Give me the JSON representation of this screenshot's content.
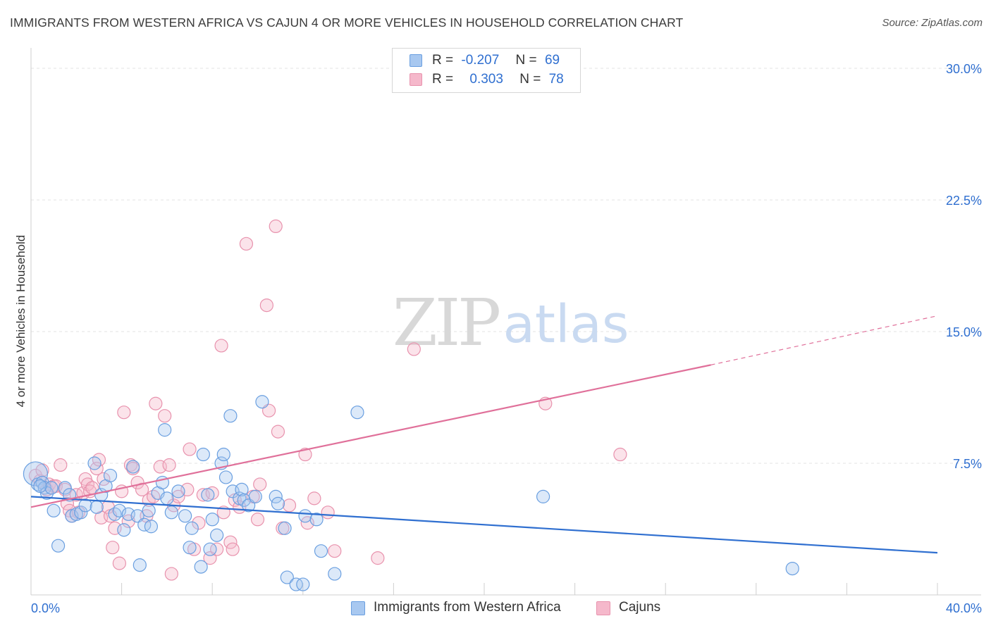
{
  "header": {
    "title": "IMMIGRANTS FROM WESTERN AFRICA VS CAJUN 4 OR MORE VEHICLES IN HOUSEHOLD CORRELATION CHART",
    "source": "Source: ZipAtlas.com"
  },
  "watermark": {
    "zip": "ZIP",
    "atlas": "atlas"
  },
  "legend": {
    "r_label": "R =",
    "n_label": "N =",
    "rows": [
      {
        "r": "-0.207",
        "n": "69"
      },
      {
        "r": "0.303",
        "n": "78"
      }
    ]
  },
  "colors": {
    "blue_fill": "#a8c8f0",
    "blue_stroke": "#6a9fe0",
    "blue_line": "#2f6fd0",
    "pink_fill": "#f5b8cb",
    "pink_stroke": "#e892ad",
    "pink_line": "#e0709a",
    "axis_text": "#2f6fd0",
    "grid": "#e3e3e3"
  },
  "chart_data": {
    "type": "scatter",
    "title": "IMMIGRANTS FROM WESTERN AFRICA VS CAJUN 4 OR MORE VEHICLES IN HOUSEHOLD CORRELATION CHART",
    "xlabel": "",
    "ylabel": "4 or more Vehicles in Household",
    "xlim": [
      0,
      40
    ],
    "ylim": [
      0,
      30
    ],
    "x_tick_labels": [
      {
        "value": 0,
        "label": "0.0%"
      },
      {
        "value": 40,
        "label": "40.0%"
      }
    ],
    "y_tick_labels": [
      {
        "value": 7.5,
        "label": "7.5%"
      },
      {
        "value": 15,
        "label": "15.0%"
      },
      {
        "value": 22.5,
        "label": "22.5%"
      },
      {
        "value": 30,
        "label": "30.0%"
      }
    ],
    "series": [
      {
        "name": "Immigrants from Western Africa",
        "color": "blue",
        "r": -0.207,
        "n": 69,
        "trend": {
          "x0": 0,
          "y0": 5.6,
          "x1": 40,
          "y1": 2.4
        },
        "points": [
          [
            0.2,
            6.9
          ],
          [
            0.3,
            6.3
          ],
          [
            0.5,
            6.4
          ],
          [
            0.6,
            6.1
          ],
          [
            0.7,
            5.8
          ],
          [
            0.9,
            6.1
          ],
          [
            1.0,
            4.8
          ],
          [
            1.2,
            2.8
          ],
          [
            1.5,
            6.1
          ],
          [
            1.7,
            5.7
          ],
          [
            1.8,
            4.5
          ],
          [
            2.0,
            4.6
          ],
          [
            2.2,
            4.7
          ],
          [
            2.4,
            5.1
          ],
          [
            2.8,
            7.5
          ],
          [
            2.9,
            5.0
          ],
          [
            3.1,
            5.7
          ],
          [
            3.3,
            6.2
          ],
          [
            3.5,
            6.8
          ],
          [
            3.7,
            4.6
          ],
          [
            3.9,
            4.8
          ],
          [
            4.1,
            3.7
          ],
          [
            4.3,
            4.6
          ],
          [
            4.5,
            7.3
          ],
          [
            4.7,
            4.5
          ],
          [
            4.8,
            1.7
          ],
          [
            5.0,
            4.0
          ],
          [
            5.2,
            4.8
          ],
          [
            5.3,
            3.9
          ],
          [
            5.6,
            5.8
          ],
          [
            5.8,
            6.4
          ],
          [
            5.9,
            9.4
          ],
          [
            6.0,
            5.5
          ],
          [
            6.2,
            4.7
          ],
          [
            6.5,
            5.9
          ],
          [
            6.8,
            4.5
          ],
          [
            7.0,
            2.7
          ],
          [
            7.1,
            3.8
          ],
          [
            7.5,
            1.6
          ],
          [
            7.6,
            8.0
          ],
          [
            7.8,
            5.7
          ],
          [
            7.9,
            2.6
          ],
          [
            8.0,
            4.3
          ],
          [
            8.2,
            3.4
          ],
          [
            8.4,
            7.5
          ],
          [
            8.5,
            8.0
          ],
          [
            8.6,
            6.7
          ],
          [
            8.8,
            10.2
          ],
          [
            8.9,
            5.9
          ],
          [
            9.2,
            5.5
          ],
          [
            9.3,
            6.0
          ],
          [
            9.4,
            5.4
          ],
          [
            9.6,
            5.1
          ],
          [
            9.9,
            5.6
          ],
          [
            10.2,
            11.0
          ],
          [
            10.8,
            5.6
          ],
          [
            10.9,
            5.2
          ],
          [
            11.2,
            3.8
          ],
          [
            11.3,
            1.0
          ],
          [
            11.7,
            0.6
          ],
          [
            12.0,
            0.6
          ],
          [
            12.1,
            4.5
          ],
          [
            12.6,
            4.3
          ],
          [
            12.8,
            2.5
          ],
          [
            13.4,
            1.2
          ],
          [
            14.4,
            10.4
          ],
          [
            22.6,
            5.6
          ],
          [
            33.6,
            1.5
          ],
          [
            0.4,
            6.2
          ]
        ]
      },
      {
        "name": "Cajuns",
        "color": "pink",
        "r": 0.303,
        "n": 78,
        "trend": {
          "x0": 0,
          "y0": 5.0,
          "x1": 30.0,
          "y1": 13.1
        },
        "trend_dashed_to": {
          "x": 40,
          "y": 15.9
        },
        "points": [
          [
            0.2,
            6.8
          ],
          [
            0.4,
            6.5
          ],
          [
            0.5,
            7.1
          ],
          [
            0.7,
            6.0
          ],
          [
            0.8,
            6.3
          ],
          [
            1.0,
            6.2
          ],
          [
            1.1,
            6.2
          ],
          [
            1.3,
            7.4
          ],
          [
            1.5,
            6.0
          ],
          [
            1.6,
            5.2
          ],
          [
            1.7,
            4.8
          ],
          [
            1.8,
            4.5
          ],
          [
            2.0,
            5.7
          ],
          [
            2.1,
            4.7
          ],
          [
            2.3,
            5.8
          ],
          [
            2.4,
            6.6
          ],
          [
            2.5,
            6.3
          ],
          [
            2.6,
            5.9
          ],
          [
            2.7,
            6.1
          ],
          [
            2.9,
            7.2
          ],
          [
            3.0,
            7.7
          ],
          [
            3.1,
            4.4
          ],
          [
            3.2,
            6.6
          ],
          [
            3.4,
            5.0
          ],
          [
            3.5,
            4.5
          ],
          [
            3.6,
            2.7
          ],
          [
            3.7,
            3.8
          ],
          [
            3.9,
            1.8
          ],
          [
            4.0,
            5.9
          ],
          [
            4.1,
            10.4
          ],
          [
            4.3,
            4.2
          ],
          [
            4.4,
            7.4
          ],
          [
            4.5,
            7.2
          ],
          [
            4.7,
            6.4
          ],
          [
            4.9,
            6.0
          ],
          [
            5.1,
            4.5
          ],
          [
            5.2,
            5.4
          ],
          [
            5.4,
            5.6
          ],
          [
            5.5,
            10.9
          ],
          [
            5.7,
            7.3
          ],
          [
            5.9,
            10.2
          ],
          [
            6.1,
            7.4
          ],
          [
            6.2,
            1.2
          ],
          [
            6.3,
            5.1
          ],
          [
            6.5,
            5.6
          ],
          [
            6.9,
            6.0
          ],
          [
            7.0,
            8.3
          ],
          [
            7.2,
            2.6
          ],
          [
            7.4,
            4.1
          ],
          [
            7.6,
            5.7
          ],
          [
            7.9,
            2.1
          ],
          [
            8.0,
            5.8
          ],
          [
            8.2,
            2.6
          ],
          [
            8.4,
            14.2
          ],
          [
            8.5,
            4.7
          ],
          [
            8.8,
            3.0
          ],
          [
            8.9,
            2.6
          ],
          [
            9.0,
            5.4
          ],
          [
            9.2,
            5.0
          ],
          [
            9.5,
            20.0
          ],
          [
            9.8,
            5.6
          ],
          [
            10.0,
            4.3
          ],
          [
            10.1,
            6.3
          ],
          [
            10.4,
            16.5
          ],
          [
            10.5,
            10.5
          ],
          [
            10.8,
            21.0
          ],
          [
            10.9,
            9.3
          ],
          [
            11.1,
            3.8
          ],
          [
            11.4,
            5.1
          ],
          [
            12.1,
            8.0
          ],
          [
            12.2,
            4.1
          ],
          [
            12.5,
            5.5
          ],
          [
            13.1,
            4.7
          ],
          [
            13.4,
            2.5
          ],
          [
            15.3,
            2.1
          ],
          [
            16.9,
            14.0
          ],
          [
            22.7,
            10.9
          ],
          [
            26.0,
            8.0
          ]
        ]
      }
    ]
  },
  "bottom_legend": [
    {
      "label": "Immigrants from Western Africa"
    },
    {
      "label": "Cajuns"
    }
  ]
}
